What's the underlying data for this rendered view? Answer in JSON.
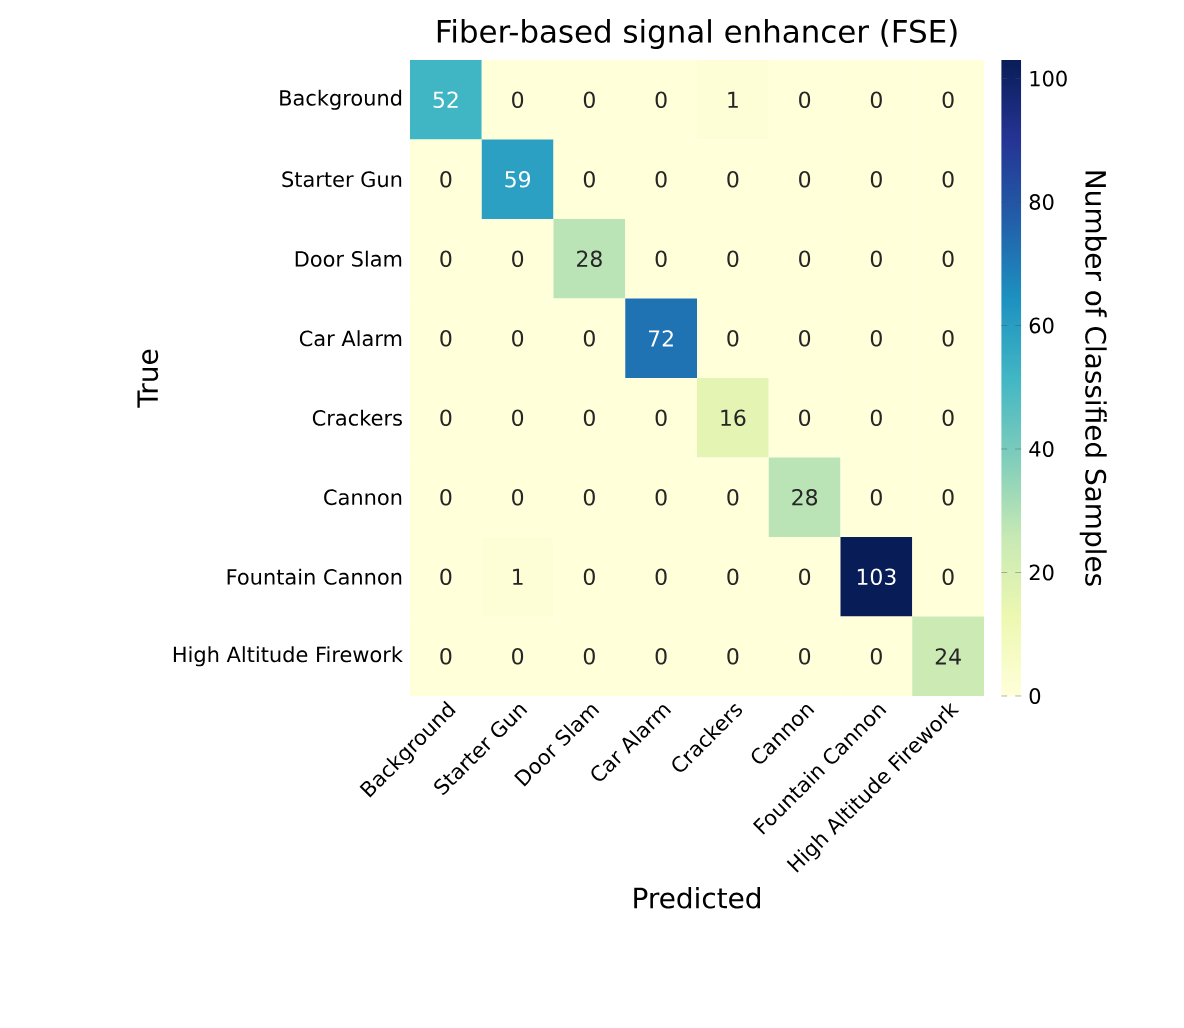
{
  "chart_data": {
    "type": "heatmap",
    "title": "Fiber-based signal enhancer (FSE)",
    "xlabel": "Predicted",
    "ylabel": "True",
    "clabel": "Number of Classified Samples",
    "categories": [
      "Background",
      "Starter Gun",
      "Door Slam",
      "Car Alarm",
      "Crackers",
      "Cannon",
      "Fountain Cannon",
      "High Altitude Firework"
    ],
    "y_categories": [
      "Background",
      "Starter Gun",
      "Door Slam",
      "Car Alarm",
      "Crackers",
      "Cannon",
      "Fountain Cannon",
      "High Altitude Firework"
    ],
    "cells": [
      [
        52,
        0,
        0,
        0,
        1,
        0,
        0,
        0
      ],
      [
        0,
        59,
        0,
        0,
        0,
        0,
        0,
        0
      ],
      [
        0,
        0,
        28,
        0,
        0,
        0,
        0,
        0
      ],
      [
        0,
        0,
        0,
        72,
        0,
        0,
        0,
        0
      ],
      [
        0,
        0,
        0,
        0,
        16,
        0,
        0,
        0
      ],
      [
        0,
        0,
        0,
        0,
        0,
        28,
        0,
        0
      ],
      [
        0,
        1,
        0,
        0,
        0,
        0,
        103,
        0
      ],
      [
        0,
        0,
        0,
        0,
        0,
        0,
        0,
        24
      ]
    ],
    "data_labels": true,
    "clim": [
      0,
      103
    ],
    "cticks": [
      0,
      20,
      40,
      60,
      80,
      100
    ]
  }
}
